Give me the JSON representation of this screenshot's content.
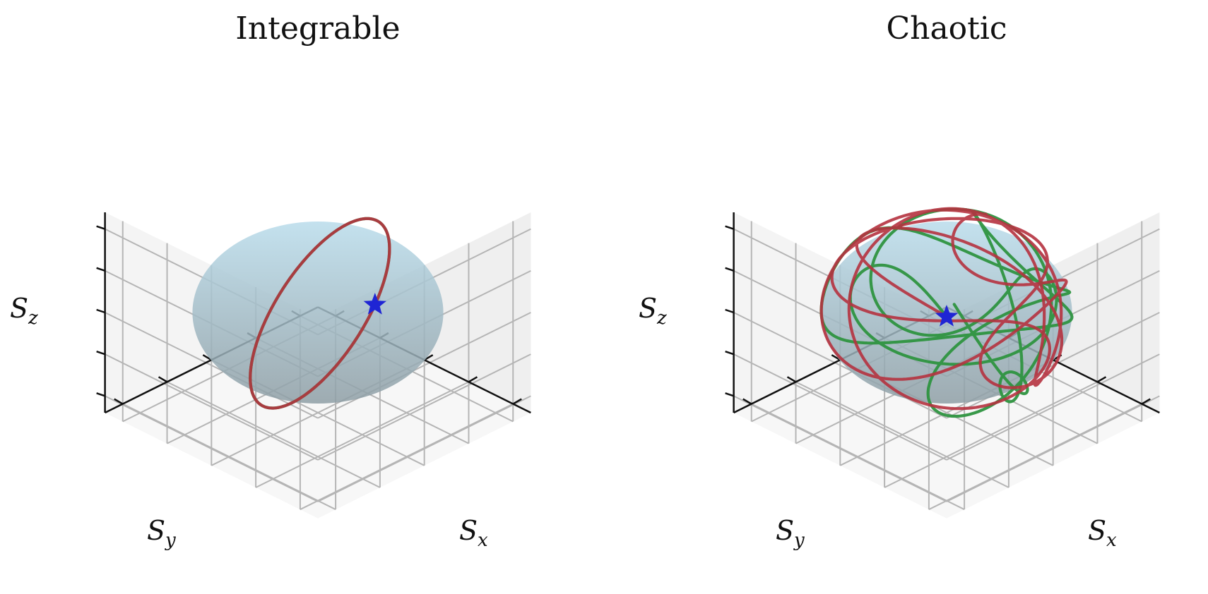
{
  "colors": {
    "pane_back": "#efefef",
    "pane_side": "#f4f4f4",
    "pane_floor": "#f7f7f7",
    "grid": "#b5b5b5",
    "axis_line": "#111111",
    "sphere": "#a9c9d8",
    "trajectory_a": "#2e9440",
    "trajectory_b": "#b5323f",
    "start_marker": "#1f25d4"
  },
  "chart_data": [
    {
      "type": "line3d",
      "title": "Integrable",
      "xlabel": "S",
      "xlabel_sub": "x",
      "ylabel": "S",
      "ylabel_sub": "y",
      "zlabel": "S",
      "zlabel_sub": "z",
      "xlim": [
        -1.2,
        1.2
      ],
      "ylim": [
        -1.2,
        1.2
      ],
      "zlim": [
        -1.2,
        1.2
      ],
      "view": {
        "elev": 25,
        "azim": 45
      },
      "sphere_radius": 1,
      "start_point": [
        -0.14,
        -0.74,
        0.55
      ],
      "series": [
        {
          "name": "trajectory-green",
          "color_key": "trajectory_a",
          "kind": "closed_orbit",
          "axis": [
            -0.62,
            0.55,
            0.55
          ],
          "tilt_deg": 40,
          "start": [
            -0.14,
            -0.74,
            0.55
          ],
          "turns": 1.06
        },
        {
          "name": "trajectory-red",
          "color_key": "trajectory_b",
          "kind": "closed_orbit",
          "axis": [
            -0.62,
            0.55,
            0.55
          ],
          "tilt_deg": 40,
          "start": [
            -0.14,
            -0.74,
            0.55
          ],
          "turns": 1.08
        }
      ]
    },
    {
      "type": "line3d",
      "title": "Chaotic",
      "xlabel": "S",
      "xlabel_sub": "x",
      "ylabel": "S",
      "ylabel_sub": "y",
      "zlabel": "S",
      "zlabel_sub": "z",
      "xlim": [
        -1.2,
        1.2
      ],
      "ylim": [
        -1.2,
        1.2
      ],
      "zlim": [
        -1.2,
        1.2
      ],
      "view": {
        "elev": 25,
        "azim": 45
      },
      "sphere_radius": 1,
      "start_point": [
        0.55,
        0.55,
        -0.63
      ],
      "series": [
        {
          "name": "trajectory-green",
          "color_key": "trajectory_a",
          "kind": "chaotic",
          "start": [
            0.55,
            0.55,
            -0.63
          ],
          "omegas": [
            1.0,
            2.37,
            3.71,
            0.61
          ],
          "amps": [
            1.0,
            0.55,
            0.35,
            0.8
          ],
          "t_max": 14.0,
          "seed": 3
        },
        {
          "name": "trajectory-red",
          "color_key": "trajectory_b",
          "kind": "chaotic",
          "start": [
            0.55,
            0.55,
            -0.63
          ],
          "omegas": [
            1.0,
            2.41,
            3.63,
            0.59
          ],
          "amps": [
            1.0,
            0.6,
            0.3,
            0.75
          ],
          "t_max": 13.0,
          "seed": 7
        }
      ]
    }
  ]
}
